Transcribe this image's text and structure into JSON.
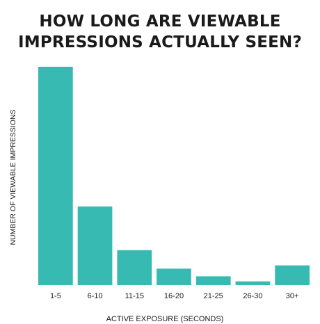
{
  "chart_data": {
    "type": "bar",
    "title_lines": [
      "HOW LONG ARE VIEWABLE",
      "IMPRESSIONS ACTUALLY SEEN?"
    ],
    "xlabel": "ACTIVE EXPOSURE (SECONDS)",
    "ylabel": "NUMBER OF VIEWABLE IMPRESSIONS",
    "categories": [
      "1-5",
      "6-10",
      "11-15",
      "16-20",
      "21-25",
      "26-30",
      "30+"
    ],
    "values": [
      100,
      36,
      16,
      7.5,
      4,
      1.7,
      9
    ],
    "ylim": [
      0,
      100
    ],
    "grid": false,
    "legend": "none",
    "bar_color": "#36bab1"
  }
}
